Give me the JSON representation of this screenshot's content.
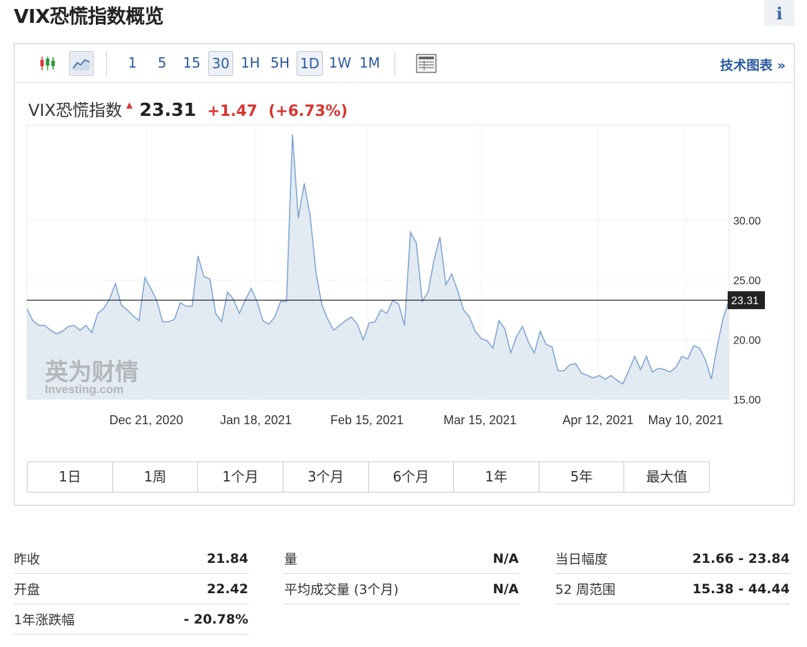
{
  "page": {
    "title": "VIX恐慌指数概览",
    "info_icon": "info-icon"
  },
  "toolbar": {
    "icons": [
      "candlestick-icon",
      "line-chart-icon",
      "table-view-icon"
    ],
    "intervals": [
      "1",
      "5",
      "15",
      "30",
      "1H",
      "5H",
      "1D",
      "1W",
      "1M"
    ],
    "selected_intervals": [
      "30",
      "1D"
    ],
    "tech_chart_link": "技术图表 »"
  },
  "quote": {
    "name": "VIX恐慌指数",
    "price": "23.31",
    "change": "+1.47",
    "change_pct": "(+6.73%)",
    "direction": "up",
    "up_color": "#d8362f"
  },
  "chart_data": {
    "type": "area",
    "ylim": [
      15,
      38
    ],
    "y_ticks": [
      "15.00",
      "20.00",
      "25.00",
      "30.00"
    ],
    "x_ticks": [
      "Dec 21, 2020",
      "Jan 18, 2021",
      "Feb 15, 2021",
      "Mar 15, 2021",
      "Apr 12, 2021",
      "May 10, 2021"
    ],
    "current_value_label": "23.31",
    "current_value": 23.31,
    "watermark": [
      "英为财情",
      "Investing.com"
    ],
    "series": [
      {
        "values": [
          22.6,
          21.6,
          21.2,
          21.2,
          20.8,
          20.5,
          20.7,
          21.1,
          21.2,
          20.8,
          21.2,
          20.6,
          22.2,
          22.6,
          23.4,
          24.7,
          22.9,
          22.5,
          22.0,
          21.6,
          25.2,
          24.3,
          23.3,
          21.5,
          21.5,
          21.7,
          23.1,
          22.8,
          22.8,
          27.0,
          25.3,
          25.1,
          22.2,
          21.5,
          24.0,
          23.4,
          22.2,
          23.3,
          24.3,
          23.2,
          21.6,
          21.3,
          21.9,
          23.2,
          23.2,
          37.2,
          30.2,
          33.1,
          30.4,
          25.6,
          22.9,
          21.7,
          20.8,
          21.2,
          21.6,
          21.9,
          21.3,
          20.0,
          21.4,
          21.5,
          22.5,
          22.2,
          23.3,
          23.0,
          21.2,
          29.0,
          28.1,
          23.2,
          24.0,
          26.7,
          28.6,
          24.6,
          25.5,
          24.1,
          22.5,
          21.9,
          20.7,
          20.1,
          19.9,
          19.3,
          21.6,
          20.9,
          18.9,
          20.3,
          21.1,
          19.8,
          18.9,
          20.7,
          19.6,
          19.4,
          17.4,
          17.4,
          17.9,
          18.0,
          17.2,
          17.0,
          16.8,
          17.0,
          16.7,
          17.0,
          16.6,
          16.3,
          17.4,
          18.6,
          17.5,
          18.6,
          17.3,
          17.6,
          17.5,
          17.3,
          17.7,
          18.6,
          18.4,
          19.5,
          19.3,
          18.3,
          16.7,
          19.5,
          21.8,
          23.31
        ]
      }
    ]
  },
  "range_buttons": [
    "1日",
    "1周",
    "1个月",
    "3个月",
    "6个月",
    "1年",
    "5年",
    "最大值"
  ],
  "stats": {
    "col1": [
      {
        "label": "昨收",
        "value": "21.84"
      },
      {
        "label": "开盘",
        "value": "22.42"
      },
      {
        "label": "1年涨跌幅",
        "value": "- 20.78%"
      }
    ],
    "col2": [
      {
        "label": "量",
        "value": "N/A"
      },
      {
        "label": "平均成交量 (3个月)",
        "value": "N/A"
      }
    ],
    "col3": [
      {
        "label": "当日幅度",
        "value": "21.66 - 23.84"
      },
      {
        "label": "52 周范围",
        "value": "15.38 - 44.44"
      }
    ]
  }
}
